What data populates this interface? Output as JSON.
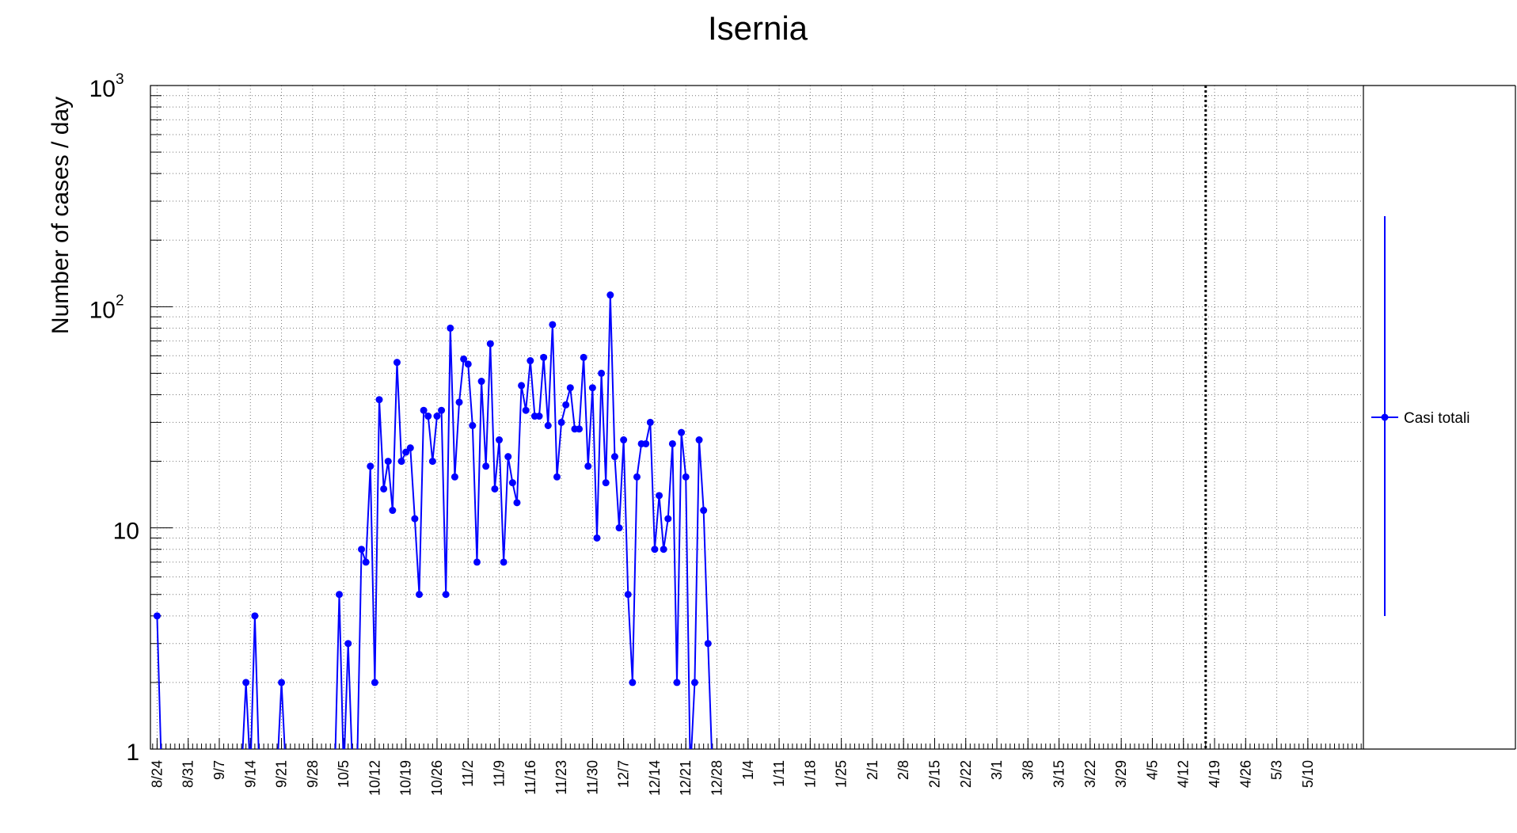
{
  "chart_data": {
    "type": "line",
    "title": "Isernia",
    "ylabel": "Number of cases / day",
    "xlabel": "",
    "yscale": "log",
    "ylim": [
      1,
      1000
    ],
    "ytick_labels": [
      {
        "value": 1,
        "base": "1",
        "exp": ""
      },
      {
        "value": 10,
        "base": "10",
        "exp": ""
      },
      {
        "value": 100,
        "base": "10",
        "exp": "2"
      },
      {
        "value": 1000,
        "base": "10",
        "exp": "3"
      }
    ],
    "x_start": "2020-08-23",
    "x_days": 273,
    "x_tick_labels": [
      "8/24",
      "8/31",
      "9/7",
      "9/14",
      "9/21",
      "9/28",
      "10/5",
      "10/12",
      "10/19",
      "10/26",
      "11/2",
      "11/9",
      "11/16",
      "11/23",
      "11/30",
      "12/7",
      "12/14",
      "12/21",
      "12/28",
      "1/4",
      "1/11",
      "1/18",
      "1/25",
      "2/1",
      "2/8",
      "2/15",
      "2/22",
      "3/1",
      "3/8",
      "3/15",
      "3/22",
      "3/29",
      "4/5",
      "4/12",
      "4/19",
      "4/26",
      "5/3",
      "5/10"
    ],
    "grid": true,
    "vertical_marker": "2021-04-17",
    "legend": {
      "position": "right",
      "entries": [
        "Casi totali"
      ]
    },
    "series": [
      {
        "name": "Casi totali",
        "color": "#0000ff",
        "points": [
          [
            "2020-08-24",
            4
          ],
          [
            "2020-08-25",
            0
          ],
          [
            "2020-08-26",
            0
          ],
          [
            "2020-08-27",
            0
          ],
          [
            "2020-09-11",
            0
          ],
          [
            "2020-09-12",
            0
          ],
          [
            "2020-09-13",
            2
          ],
          [
            "2020-09-14",
            0
          ],
          [
            "2020-09-15",
            4
          ],
          [
            "2020-09-16",
            0
          ],
          [
            "2020-09-20",
            0
          ],
          [
            "2020-09-21",
            2
          ],
          [
            "2020-09-22",
            0
          ],
          [
            "2020-10-03",
            0
          ],
          [
            "2020-10-04",
            5
          ],
          [
            "2020-10-05",
            0
          ],
          [
            "2020-10-06",
            3
          ],
          [
            "2020-10-07",
            0
          ],
          [
            "2020-10-08",
            0
          ],
          [
            "2020-10-09",
            8
          ],
          [
            "2020-10-10",
            7
          ],
          [
            "2020-10-11",
            19
          ],
          [
            "2020-10-12",
            2
          ],
          [
            "2020-10-13",
            38
          ],
          [
            "2020-10-14",
            15
          ],
          [
            "2020-10-15",
            20
          ],
          [
            "2020-10-16",
            12
          ],
          [
            "2020-10-17",
            56
          ],
          [
            "2020-10-18",
            20
          ],
          [
            "2020-10-19",
            22
          ],
          [
            "2020-10-20",
            23
          ],
          [
            "2020-10-21",
            11
          ],
          [
            "2020-10-22",
            5
          ],
          [
            "2020-10-23",
            34
          ],
          [
            "2020-10-24",
            32
          ],
          [
            "2020-10-25",
            20
          ],
          [
            "2020-10-26",
            32
          ],
          [
            "2020-10-27",
            34
          ],
          [
            "2020-10-28",
            5
          ],
          [
            "2020-10-29",
            80
          ],
          [
            "2020-10-30",
            17
          ],
          [
            "2020-10-31",
            37
          ],
          [
            "2020-11-01",
            58
          ],
          [
            "2020-11-02",
            55
          ],
          [
            "2020-11-03",
            29
          ],
          [
            "2020-11-04",
            7
          ],
          [
            "2020-11-05",
            46
          ],
          [
            "2020-11-06",
            19
          ],
          [
            "2020-11-07",
            68
          ],
          [
            "2020-11-08",
            15
          ],
          [
            "2020-11-09",
            25
          ],
          [
            "2020-11-10",
            7
          ],
          [
            "2020-11-11",
            21
          ],
          [
            "2020-11-12",
            16
          ],
          [
            "2020-11-13",
            13
          ],
          [
            "2020-11-14",
            44
          ],
          [
            "2020-11-15",
            34
          ],
          [
            "2020-11-16",
            57
          ],
          [
            "2020-11-17",
            32
          ],
          [
            "2020-11-18",
            32
          ],
          [
            "2020-11-19",
            59
          ],
          [
            "2020-11-20",
            29
          ],
          [
            "2020-11-21",
            83
          ],
          [
            "2020-11-22",
            17
          ],
          [
            "2020-11-23",
            30
          ],
          [
            "2020-11-24",
            36
          ],
          [
            "2020-11-25",
            43
          ],
          [
            "2020-11-26",
            28
          ],
          [
            "2020-11-27",
            28
          ],
          [
            "2020-11-28",
            59
          ],
          [
            "2020-11-29",
            19
          ],
          [
            "2020-11-30",
            43
          ],
          [
            "2020-12-01",
            9
          ],
          [
            "2020-12-02",
            50
          ],
          [
            "2020-12-03",
            16
          ],
          [
            "2020-12-04",
            113
          ],
          [
            "2020-12-05",
            21
          ],
          [
            "2020-12-06",
            10
          ],
          [
            "2020-12-07",
            25
          ],
          [
            "2020-12-08",
            5
          ],
          [
            "2020-12-09",
            2
          ],
          [
            "2020-12-10",
            17
          ],
          [
            "2020-12-11",
            24
          ],
          [
            "2020-12-12",
            24
          ],
          [
            "2020-12-13",
            30
          ],
          [
            "2020-12-14",
            8
          ],
          [
            "2020-12-15",
            14
          ],
          [
            "2020-12-16",
            8
          ],
          [
            "2020-12-17",
            11
          ],
          [
            "2020-12-18",
            24
          ],
          [
            "2020-12-19",
            2
          ],
          [
            "2020-12-20",
            27
          ],
          [
            "2020-12-21",
            17
          ],
          [
            "2020-12-22",
            0
          ],
          [
            "2020-12-23",
            2
          ],
          [
            "2020-12-24",
            25
          ],
          [
            "2020-12-25",
            12
          ],
          [
            "2020-12-26",
            3
          ],
          [
            "2020-12-27",
            0
          ]
        ]
      }
    ]
  }
}
